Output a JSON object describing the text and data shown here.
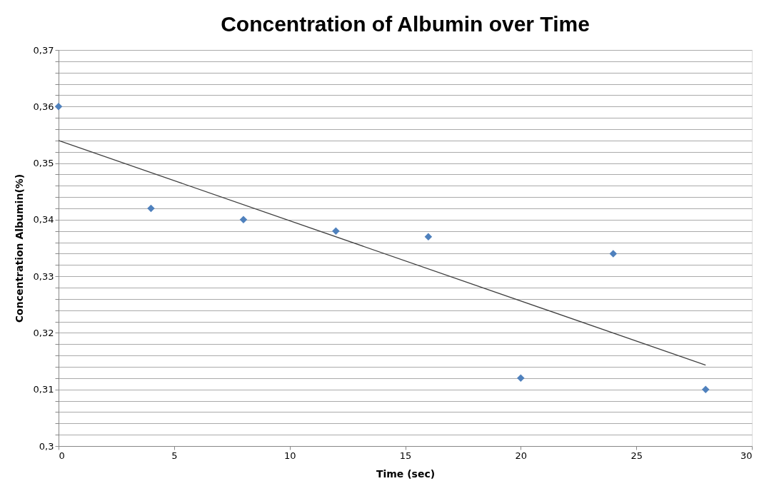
{
  "chart_data": {
    "type": "scatter",
    "title": "Concentration of Albumin over Time",
    "xlabel": "Time (sec)",
    "ylabel": "Concentration Albumin(%)",
    "x": [
      0,
      4,
      8,
      12,
      16,
      20,
      24,
      28
    ],
    "series": [
      {
        "type": "scatter",
        "color": "#4f81bd",
        "marker": "diamond",
        "values": [
          0.36,
          0.342,
          0.34,
          0.338,
          0.337,
          0.312,
          0.334,
          0.31
        ]
      },
      {
        "type": "line",
        "color": "#404040",
        "marker": "none",
        "line_style": "solid",
        "x": [
          0,
          28
        ],
        "values": [
          0.354,
          0.3143
        ]
      }
    ],
    "xlim": [
      0,
      30
    ],
    "xticks": [
      0,
      5,
      10,
      15,
      20,
      25,
      30
    ],
    "ylim": [
      0.3,
      0.37
    ],
    "yticks": [
      {
        "value": 0.3,
        "label": "0,3"
      },
      {
        "value": 0.302,
        "label": null
      },
      {
        "value": 0.304,
        "label": null
      },
      {
        "value": 0.306,
        "label": null
      },
      {
        "value": 0.308,
        "label": null
      },
      {
        "value": 0.31,
        "label": "0,31"
      },
      {
        "value": 0.312,
        "label": null
      },
      {
        "value": 0.314,
        "label": null
      },
      {
        "value": 0.316,
        "label": null
      },
      {
        "value": 0.318,
        "label": null
      },
      {
        "value": 0.32,
        "label": "0,32"
      },
      {
        "value": 0.322,
        "label": null
      },
      {
        "value": 0.324,
        "label": null
      },
      {
        "value": 0.326,
        "label": null
      },
      {
        "value": 0.328,
        "label": null
      },
      {
        "value": 0.33,
        "label": "0,33"
      },
      {
        "value": 0.332,
        "label": null
      },
      {
        "value": 0.334,
        "label": null
      },
      {
        "value": 0.336,
        "label": null
      },
      {
        "value": 0.338,
        "label": null
      },
      {
        "value": 0.34,
        "label": "0,34"
      },
      {
        "value": 0.342,
        "label": null
      },
      {
        "value": 0.344,
        "label": null
      },
      {
        "value": 0.346,
        "label": null
      },
      {
        "value": 0.348,
        "label": null
      },
      {
        "value": 0.35,
        "label": "0,35"
      },
      {
        "value": 0.352,
        "label": null
      },
      {
        "value": 0.354,
        "label": null
      },
      {
        "value": 0.356,
        "label": null
      },
      {
        "value": 0.358,
        "label": null
      },
      {
        "value": 0.36,
        "label": "0,36"
      },
      {
        "value": 0.362,
        "label": null
      },
      {
        "value": 0.364,
        "label": null
      },
      {
        "value": 0.366,
        "label": null
      },
      {
        "value": 0.368,
        "label": null
      },
      {
        "value": 0.37,
        "label": "0,37"
      }
    ],
    "grid": "y",
    "legend": false
  }
}
